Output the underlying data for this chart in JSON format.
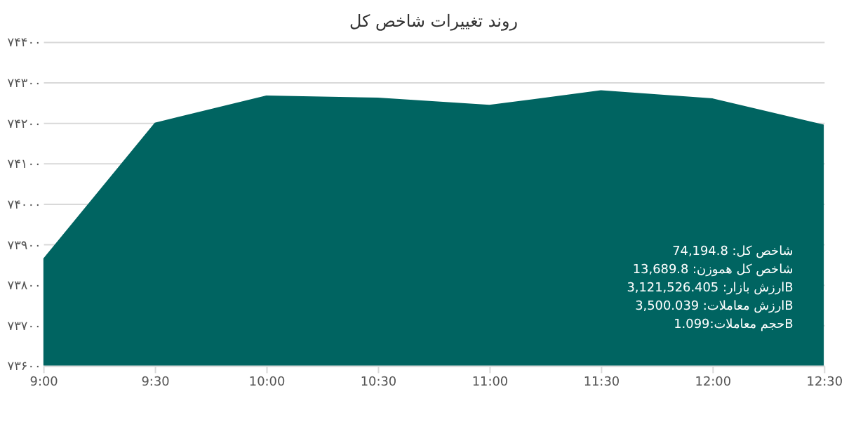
{
  "chart_data": {
    "type": "area",
    "title": "روند تغییرات شاخص کل",
    "categories": [
      "9:00",
      "9:30",
      "10:00",
      "10:30",
      "11:00",
      "11:30",
      "12:00",
      "12:30"
    ],
    "series": [
      {
        "color": "#006461",
        "values": [
          73864,
          74200,
          74267,
          74262,
          74244,
          74280,
          74260,
          74195
        ]
      }
    ],
    "ylim": [
      73600,
      74400
    ],
    "yticks": [
      {
        "value": 73600,
        "label": "۷۳۶۰۰"
      },
      {
        "value": 73700,
        "label": "۷۳۷۰۰"
      },
      {
        "value": 73800,
        "label": "۷۳۸۰۰"
      },
      {
        "value": 73900,
        "label": "۷۳۹۰۰"
      },
      {
        "value": 74000,
        "label": "۷۴۰۰۰"
      },
      {
        "value": 74100,
        "label": "۷۴۱۰۰"
      },
      {
        "value": 74200,
        "label": "۷۴۲۰۰"
      },
      {
        "value": 74300,
        "label": "۷۴۳۰۰"
      },
      {
        "value": 74400,
        "label": "۷۴۴۰۰"
      }
    ],
    "grid": "y",
    "annotations": [
      "شاخص کل: 74,194.8",
      "شاخص کل هموزن: 13,689.8",
      "ارزش بازار: 3,121,526.405B",
      "ارزش معاملات: 3,500.039B",
      "حجم معاملات:1.099B"
    ]
  }
}
